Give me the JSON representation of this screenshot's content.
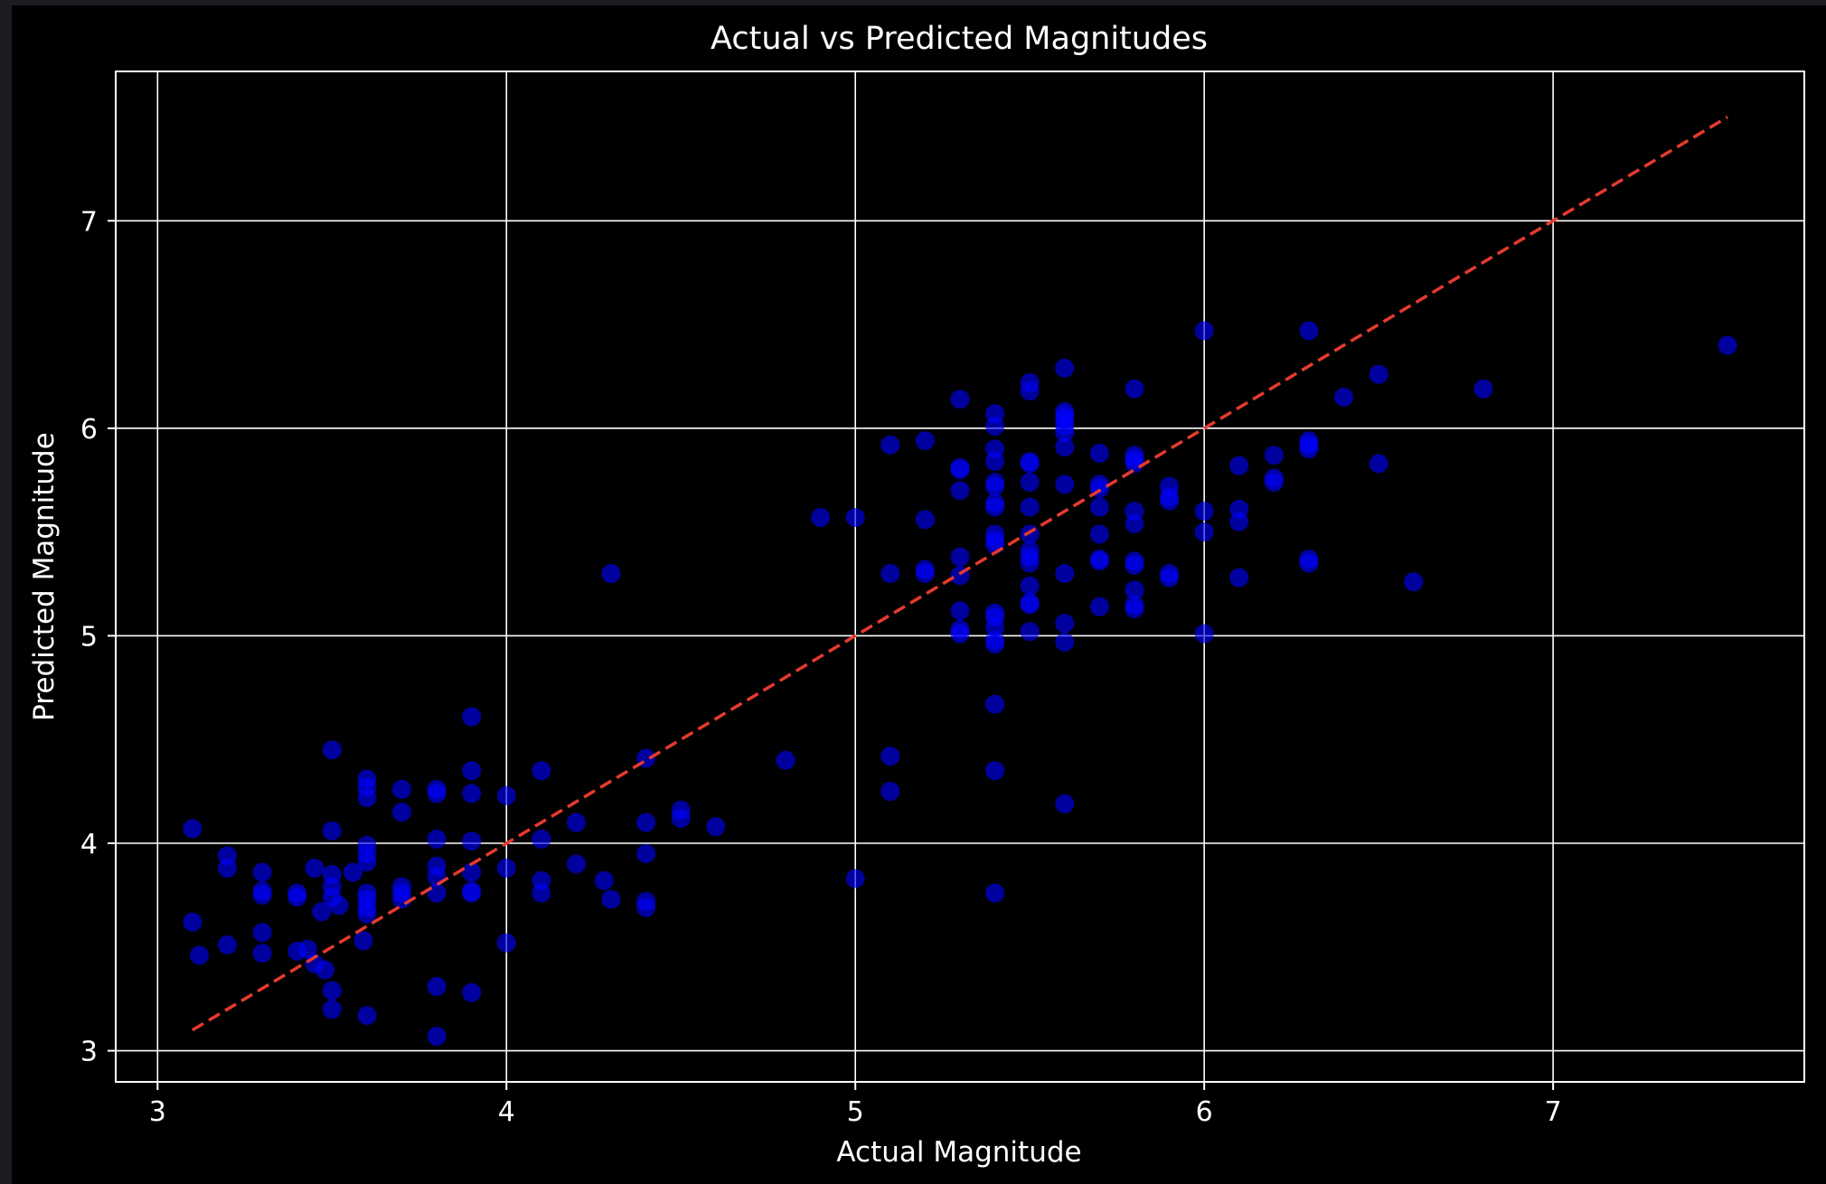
{
  "chart_data": {
    "type": "scatter",
    "title": "Actual vs Predicted Magnitudes",
    "xlabel": "Actual Magnitude",
    "ylabel": "Predicted Magnitude",
    "xlim": [
      2.88,
      7.72
    ],
    "ylim": [
      2.85,
      7.72
    ],
    "x_ticks": [
      3,
      4,
      5,
      6,
      7
    ],
    "y_ticks": [
      3,
      4,
      5,
      6,
      7
    ],
    "grid": true,
    "background_color": "#000000",
    "axes_color": "#ffffff",
    "point_color": "#0000ff",
    "reference_line": {
      "style": "dashed",
      "color": "#e53a2f",
      "points": [
        [
          3.1,
          3.1
        ],
        [
          7.5,
          7.5
        ]
      ]
    },
    "series": [
      {
        "points": [
          [
            3.1,
            4.07
          ],
          [
            3.1,
            3.62
          ],
          [
            3.12,
            3.46
          ],
          [
            3.2,
            3.94
          ],
          [
            3.2,
            3.88
          ],
          [
            3.2,
            3.51
          ],
          [
            3.3,
            3.86
          ],
          [
            3.3,
            3.77
          ],
          [
            3.3,
            3.75
          ],
          [
            3.3,
            3.57
          ],
          [
            3.3,
            3.47
          ],
          [
            3.4,
            3.76
          ],
          [
            3.4,
            3.74
          ],
          [
            3.4,
            3.48
          ],
          [
            3.43,
            3.49
          ],
          [
            3.45,
            3.88
          ],
          [
            3.45,
            3.42
          ],
          [
            3.47,
            3.67
          ],
          [
            3.48,
            3.39
          ],
          [
            3.5,
            4.45
          ],
          [
            3.5,
            4.06
          ],
          [
            3.5,
            3.85
          ],
          [
            3.5,
            3.79
          ],
          [
            3.5,
            3.74
          ],
          [
            3.5,
            3.29
          ],
          [
            3.5,
            3.2
          ],
          [
            3.52,
            3.7
          ],
          [
            3.56,
            3.86
          ],
          [
            3.6,
            4.31
          ],
          [
            3.6,
            4.27
          ],
          [
            3.6,
            4.22
          ],
          [
            3.6,
            3.99
          ],
          [
            3.6,
            3.95
          ],
          [
            3.6,
            3.91
          ],
          [
            3.6,
            3.76
          ],
          [
            3.6,
            3.73
          ],
          [
            3.6,
            3.69
          ],
          [
            3.6,
            3.66
          ],
          [
            3.6,
            3.17
          ],
          [
            3.59,
            3.53
          ],
          [
            3.7,
            4.26
          ],
          [
            3.7,
            4.15
          ],
          [
            3.7,
            3.79
          ],
          [
            3.7,
            3.76
          ],
          [
            3.7,
            3.73
          ],
          [
            3.8,
            4.26
          ],
          [
            3.8,
            4.24
          ],
          [
            3.8,
            4.02
          ],
          [
            3.8,
            3.89
          ],
          [
            3.8,
            3.84
          ],
          [
            3.8,
            3.76
          ],
          [
            3.8,
            3.31
          ],
          [
            3.8,
            3.07
          ],
          [
            3.9,
            4.61
          ],
          [
            3.9,
            4.35
          ],
          [
            3.9,
            4.24
          ],
          [
            3.9,
            4.01
          ],
          [
            3.9,
            3.86
          ],
          [
            3.9,
            3.77
          ],
          [
            3.9,
            3.76
          ],
          [
            3.9,
            3.28
          ],
          [
            4.0,
            4.23
          ],
          [
            4.0,
            3.88
          ],
          [
            4.0,
            3.52
          ],
          [
            4.1,
            4.35
          ],
          [
            4.1,
            4.02
          ],
          [
            4.1,
            3.82
          ],
          [
            4.1,
            3.76
          ],
          [
            4.2,
            4.1
          ],
          [
            4.2,
            3.9
          ],
          [
            4.28,
            3.82
          ],
          [
            4.3,
            5.3
          ],
          [
            4.3,
            3.73
          ],
          [
            4.4,
            4.41
          ],
          [
            4.4,
            4.1
          ],
          [
            4.4,
            3.95
          ],
          [
            4.4,
            3.72
          ],
          [
            4.4,
            3.69
          ],
          [
            4.5,
            4.16
          ],
          [
            4.5,
            4.12
          ],
          [
            4.6,
            4.08
          ],
          [
            4.8,
            4.4
          ],
          [
            4.9,
            5.57
          ],
          [
            5.0,
            5.57
          ],
          [
            5.0,
            3.83
          ],
          [
            5.1,
            5.92
          ],
          [
            5.1,
            5.3
          ],
          [
            5.1,
            4.42
          ],
          [
            5.1,
            4.25
          ],
          [
            5.2,
            5.94
          ],
          [
            5.2,
            5.56
          ],
          [
            5.2,
            5.32
          ],
          [
            5.2,
            5.3
          ],
          [
            5.3,
            6.14
          ],
          [
            5.3,
            5.81
          ],
          [
            5.3,
            5.8
          ],
          [
            5.3,
            5.7
          ],
          [
            5.3,
            5.38
          ],
          [
            5.3,
            5.29
          ],
          [
            5.3,
            5.12
          ],
          [
            5.3,
            5.03
          ],
          [
            5.3,
            5.01
          ],
          [
            5.4,
            6.07
          ],
          [
            5.4,
            6.01
          ],
          [
            5.4,
            5.9
          ],
          [
            5.4,
            5.84
          ],
          [
            5.4,
            5.74
          ],
          [
            5.4,
            5.72
          ],
          [
            5.4,
            5.64
          ],
          [
            5.4,
            5.62
          ],
          [
            5.4,
            5.49
          ],
          [
            5.4,
            5.46
          ],
          [
            5.4,
            5.44
          ],
          [
            5.4,
            5.11
          ],
          [
            5.4,
            5.09
          ],
          [
            5.4,
            5.04
          ],
          [
            5.4,
            4.98
          ],
          [
            5.4,
            4.96
          ],
          [
            5.4,
            4.67
          ],
          [
            5.4,
            4.35
          ],
          [
            5.4,
            3.76
          ],
          [
            5.5,
            6.22
          ],
          [
            5.5,
            6.18
          ],
          [
            5.5,
            5.84
          ],
          [
            5.5,
            5.83
          ],
          [
            5.5,
            5.74
          ],
          [
            5.5,
            5.62
          ],
          [
            5.5,
            5.49
          ],
          [
            5.5,
            5.41
          ],
          [
            5.5,
            5.38
          ],
          [
            5.5,
            5.35
          ],
          [
            5.5,
            5.24
          ],
          [
            5.5,
            5.16
          ],
          [
            5.5,
            5.15
          ],
          [
            5.5,
            5.02
          ],
          [
            5.6,
            6.29
          ],
          [
            5.6,
            6.08
          ],
          [
            5.6,
            6.06
          ],
          [
            5.6,
            6.04
          ],
          [
            5.6,
            6.01
          ],
          [
            5.6,
            5.98
          ],
          [
            5.6,
            5.91
          ],
          [
            5.6,
            5.73
          ],
          [
            5.6,
            5.3
          ],
          [
            5.6,
            5.06
          ],
          [
            5.6,
            4.97
          ],
          [
            5.6,
            4.19
          ],
          [
            5.7,
            5.88
          ],
          [
            5.7,
            5.73
          ],
          [
            5.7,
            5.71
          ],
          [
            5.7,
            5.62
          ],
          [
            5.7,
            5.49
          ],
          [
            5.7,
            5.37
          ],
          [
            5.7,
            5.36
          ],
          [
            5.7,
            5.14
          ],
          [
            5.8,
            6.19
          ],
          [
            5.8,
            5.87
          ],
          [
            5.8,
            5.85
          ],
          [
            5.8,
            5.83
          ],
          [
            5.8,
            5.6
          ],
          [
            5.8,
            5.54
          ],
          [
            5.8,
            5.36
          ],
          [
            5.8,
            5.34
          ],
          [
            5.8,
            5.22
          ],
          [
            5.8,
            5.15
          ],
          [
            5.8,
            5.13
          ],
          [
            5.9,
            5.72
          ],
          [
            5.9,
            5.67
          ],
          [
            5.9,
            5.65
          ],
          [
            5.9,
            5.3
          ],
          [
            5.9,
            5.28
          ],
          [
            6.0,
            6.47
          ],
          [
            6.0,
            5.6
          ],
          [
            6.0,
            5.5
          ],
          [
            6.0,
            5.01
          ],
          [
            6.1,
            5.82
          ],
          [
            6.1,
            5.61
          ],
          [
            6.1,
            5.55
          ],
          [
            6.1,
            5.28
          ],
          [
            6.2,
            5.87
          ],
          [
            6.2,
            5.76
          ],
          [
            6.2,
            5.74
          ],
          [
            6.3,
            6.47
          ],
          [
            6.3,
            5.94
          ],
          [
            6.3,
            5.92
          ],
          [
            6.3,
            5.9
          ],
          [
            6.3,
            5.37
          ],
          [
            6.3,
            5.35
          ],
          [
            6.4,
            6.15
          ],
          [
            6.5,
            6.26
          ],
          [
            6.5,
            5.83
          ],
          [
            6.6,
            5.26
          ],
          [
            6.8,
            6.19
          ],
          [
            7.5,
            6.4
          ]
        ]
      }
    ]
  }
}
